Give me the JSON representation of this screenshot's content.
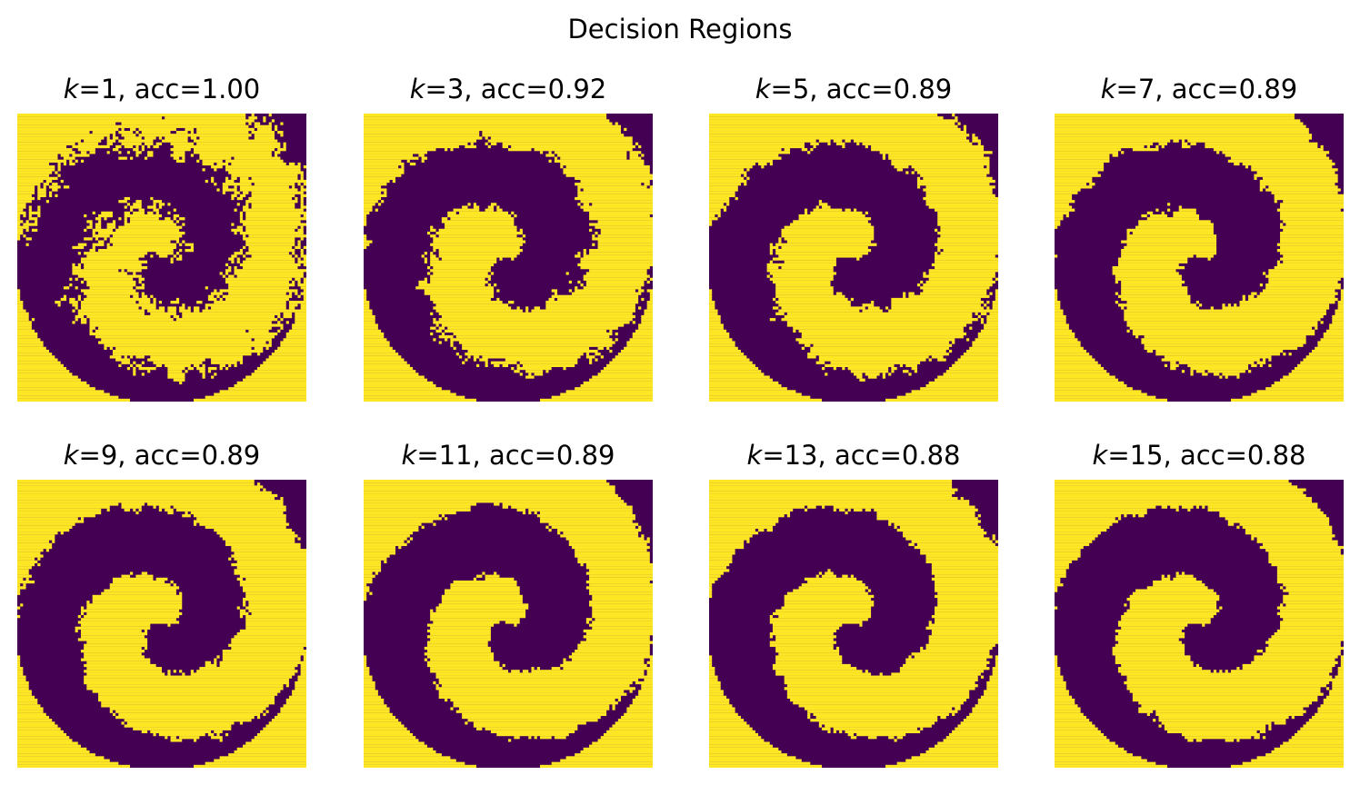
{
  "figure": {
    "suptitle": "Decision Regions"
  },
  "colors": {
    "class_0": "#440154",
    "class_1": "#fde725"
  },
  "chart_data": [
    {
      "type": "heatmap",
      "title": "k=1, acc=1.00",
      "k_label": "k",
      "title_rest": "=1, acc=1.00",
      "k": 1,
      "accuracy": 1.0,
      "classes": [
        0,
        1
      ],
      "axes": "off"
    },
    {
      "type": "heatmap",
      "title": "k=3, acc=0.92",
      "k_label": "k",
      "title_rest": "=3, acc=0.92",
      "k": 3,
      "accuracy": 0.92,
      "classes": [
        0,
        1
      ],
      "axes": "off"
    },
    {
      "type": "heatmap",
      "title": "k=5, acc=0.89",
      "k_label": "k",
      "title_rest": "=5, acc=0.89",
      "k": 5,
      "accuracy": 0.89,
      "classes": [
        0,
        1
      ],
      "axes": "off"
    },
    {
      "type": "heatmap",
      "title": "k=7, acc=0.89",
      "k_label": "k",
      "title_rest": "=7, acc=0.89",
      "k": 7,
      "accuracy": 0.89,
      "classes": [
        0,
        1
      ],
      "axes": "off"
    },
    {
      "type": "heatmap",
      "title": "k=9, acc=0.89",
      "k_label": "k",
      "title_rest": "=9, acc=0.89",
      "k": 9,
      "accuracy": 0.89,
      "classes": [
        0,
        1
      ],
      "axes": "off"
    },
    {
      "type": "heatmap",
      "title": "k=11, acc=0.89",
      "k_label": "k",
      "title_rest": "=11, acc=0.89",
      "k": 11,
      "accuracy": 0.89,
      "classes": [
        0,
        1
      ],
      "axes": "off"
    },
    {
      "type": "heatmap",
      "title": "k=13, acc=0.88",
      "k_label": "k",
      "title_rest": "=13, acc=0.88",
      "k": 13,
      "accuracy": 0.88,
      "classes": [
        0,
        1
      ],
      "axes": "off"
    },
    {
      "type": "heatmap",
      "title": "k=15, acc=0.88",
      "k_label": "k",
      "title_rest": "=15, acc=0.88",
      "k": 15,
      "accuracy": 0.88,
      "classes": [
        0,
        1
      ],
      "axes": "off"
    }
  ]
}
